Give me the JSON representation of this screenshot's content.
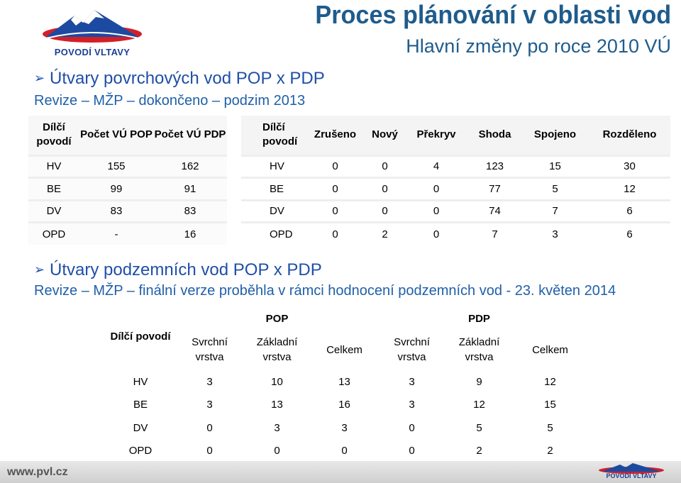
{
  "logo": {
    "text": "POVODÍ VLTAVY"
  },
  "header": {
    "title": "Proces plánování v oblasti vod",
    "subtitle": "Hlavní změny po roce 2010 VÚ"
  },
  "section1": {
    "heading": "Útvary povrchových vod POP x PDP",
    "sub": "Revize – MŽP – dokončeno – podzim 2013"
  },
  "table1": {
    "headers": [
      "Dílčí povodí",
      "Počet VÚ POP",
      "Počet VÚ PDP"
    ],
    "rows": [
      [
        "HV",
        "155",
        "162"
      ],
      [
        "BE",
        "99",
        "91"
      ],
      [
        "DV",
        "83",
        "83"
      ],
      [
        "OPD",
        "-",
        "16"
      ]
    ]
  },
  "table2": {
    "headers": [
      "Dílčí povodí",
      "Zrušeno",
      "Nový",
      "Překryv",
      "Shoda",
      "Spojeno",
      "Rozděleno"
    ],
    "rows": [
      [
        "HV",
        "0",
        "0",
        "4",
        "123",
        "15",
        "30"
      ],
      [
        "BE",
        "0",
        "0",
        "0",
        "77",
        "5",
        "12"
      ],
      [
        "DV",
        "0",
        "0",
        "0",
        "74",
        "7",
        "6"
      ],
      [
        "OPD",
        "0",
        "2",
        "0",
        "7",
        "3",
        "6"
      ]
    ]
  },
  "section2": {
    "heading": "Útvary podzemních vod POP x PDP",
    "sub": "Revize – MŽP – finální verze proběhla v rámci hodnocení podzemních vod - 23. květen 2014"
  },
  "table3": {
    "group1": "POP",
    "group2": "PDP",
    "headers": [
      "Dílčí povodí",
      "Svrchní vrstva",
      "Základní vrstva",
      "Celkem",
      "Svrchní vrstva",
      "Základní vrstva",
      "Celkem"
    ],
    "rows": [
      [
        "HV",
        "3",
        "10",
        "13",
        "3",
        "9",
        "12"
      ],
      [
        "BE",
        "3",
        "13",
        "16",
        "3",
        "12",
        "15"
      ],
      [
        "DV",
        "0",
        "3",
        "3",
        "0",
        "5",
        "5"
      ],
      [
        "OPD",
        "0",
        "0",
        "0",
        "0",
        "2",
        "2"
      ]
    ]
  },
  "footer": {
    "url": "www.pvl.cz",
    "logo_text": "POVODÍ VLTAVY"
  },
  "colors": {
    "title": "#1f5c8c",
    "heading": "#1f4fa8",
    "brand": "#1c3f94",
    "accent_red": "#d2202a"
  }
}
